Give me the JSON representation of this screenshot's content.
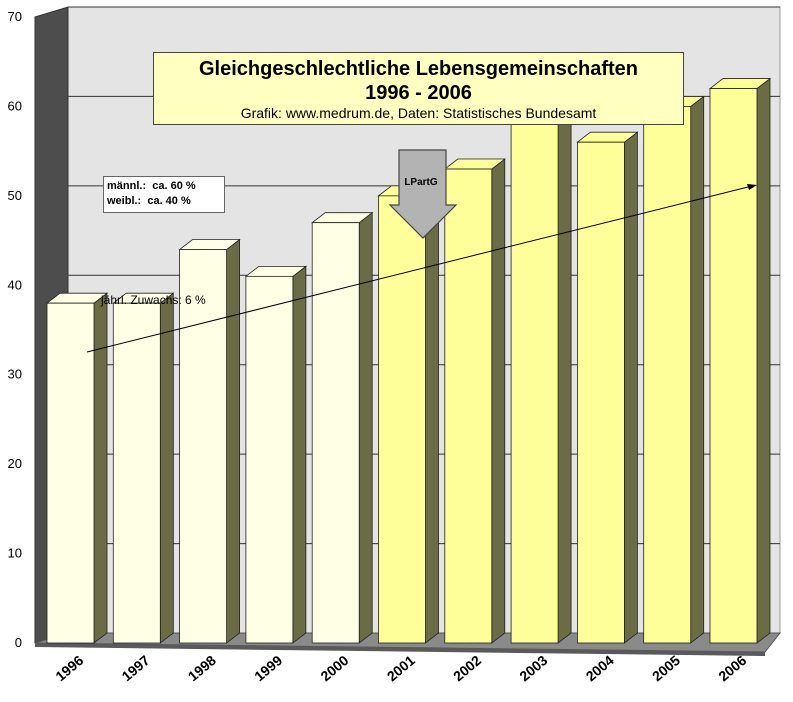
{
  "chart_data": {
    "type": "bar",
    "title": "Gleichgeschlechtliche Lebensgemeinschaften",
    "subtitle": "1996 - 2006",
    "source": "Grafik: www.medrum.de, Daten: Statistisches Bundesamt",
    "categories": [
      "1996",
      "1997",
      "1998",
      "1999",
      "2000",
      "2001",
      "2002",
      "2003",
      "2004",
      "2005",
      "2006"
    ],
    "values": [
      38,
      38,
      44,
      41,
      47,
      50,
      53,
      58,
      56,
      60,
      62
    ],
    "ylim": [
      0,
      70
    ],
    "yticks": [
      "0",
      "10",
      "20",
      "30",
      "40",
      "50",
      "60",
      "70"
    ],
    "grid": true,
    "colors": {
      "early_bar": "#ffffe6",
      "late_bar": "#ffff99",
      "bar_side": "#6b6b45",
      "wall": "#e4e4e4",
      "left_wall": "#4d4d4d",
      "floor": "#8a8a8a"
    },
    "highlight_from_index": 5,
    "legend": {
      "lines": [
        "männl.:  ca. 60 %",
        "weibl.:  ca. 40 %"
      ]
    },
    "annotations": {
      "growth_label": "jährl. Zuwachs: 6 %",
      "law_label": "LPartG"
    }
  }
}
